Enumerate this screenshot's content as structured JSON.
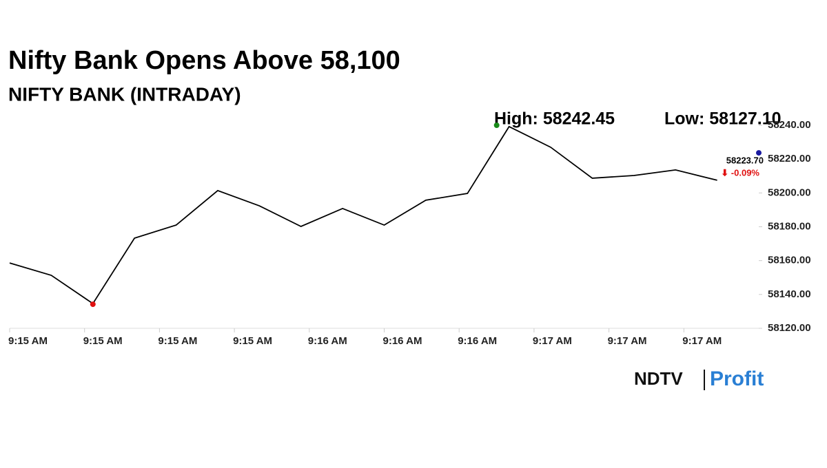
{
  "chart_data": {
    "type": "line",
    "title": "Nifty Bank Opens Above 58,100",
    "subtitle": "NIFTY BANK (INTRADAY)",
    "x": [
      0,
      1,
      2,
      3,
      4,
      5,
      6,
      7,
      8,
      9,
      10,
      11,
      12,
      13,
      14,
      15,
      16,
      17
    ],
    "series": [
      {
        "name": "NIFTY BANK",
        "color": "#000000",
        "values": [
          58158.6,
          58151.3,
          58134.6,
          58173.3,
          58181.0,
          58201.4,
          58192.4,
          58180.2,
          58190.8,
          58181.0,
          58195.7,
          58199.7,
          58239.2,
          58227.0,
          58208.7,
          58210.3,
          58213.6,
          58207.5
        ]
      }
    ],
    "xlim": [
      0,
      18
    ],
    "xticks": [
      {
        "value": 0,
        "label": "9:15 AM"
      },
      {
        "value": 1.8,
        "label": "9:15 AM"
      },
      {
        "value": 3.6,
        "label": "9:15 AM"
      },
      {
        "value": 5.4,
        "label": "9:15 AM"
      },
      {
        "value": 7.2,
        "label": "9:16 AM"
      },
      {
        "value": 9,
        "label": "9:16 AM"
      },
      {
        "value": 10.8,
        "label": "9:16 AM"
      },
      {
        "value": 12.6,
        "label": "9:17 AM"
      },
      {
        "value": 14.4,
        "label": "9:17 AM"
      },
      {
        "value": 16.2,
        "label": "9:17 AM"
      }
    ],
    "ylim": [
      58120,
      58240
    ],
    "yticks": [
      {
        "value": 58120,
        "label": "58120.00"
      },
      {
        "value": 58140,
        "label": "58140.00"
      },
      {
        "value": 58160,
        "label": "58160.00"
      },
      {
        "value": 58180,
        "label": "58180.00"
      },
      {
        "value": 58200,
        "label": "58200.00"
      },
      {
        "value": 58220,
        "label": "58220.00"
      },
      {
        "value": 58240,
        "label": "58240.00"
      }
    ],
    "high": {
      "value": 58242.45,
      "label": "High: 58242.45",
      "color": "#1a8a1a"
    },
    "low": {
      "value": 58127.1,
      "label": "Low: 58127.10",
      "color": "#e01010"
    },
    "last": {
      "value": 58223.7,
      "label": "58223.70",
      "color": "#1a1aa0"
    },
    "change": "⬇ -0.09%"
  },
  "logo": {
    "left": "NDTV",
    "right": "Profit"
  }
}
